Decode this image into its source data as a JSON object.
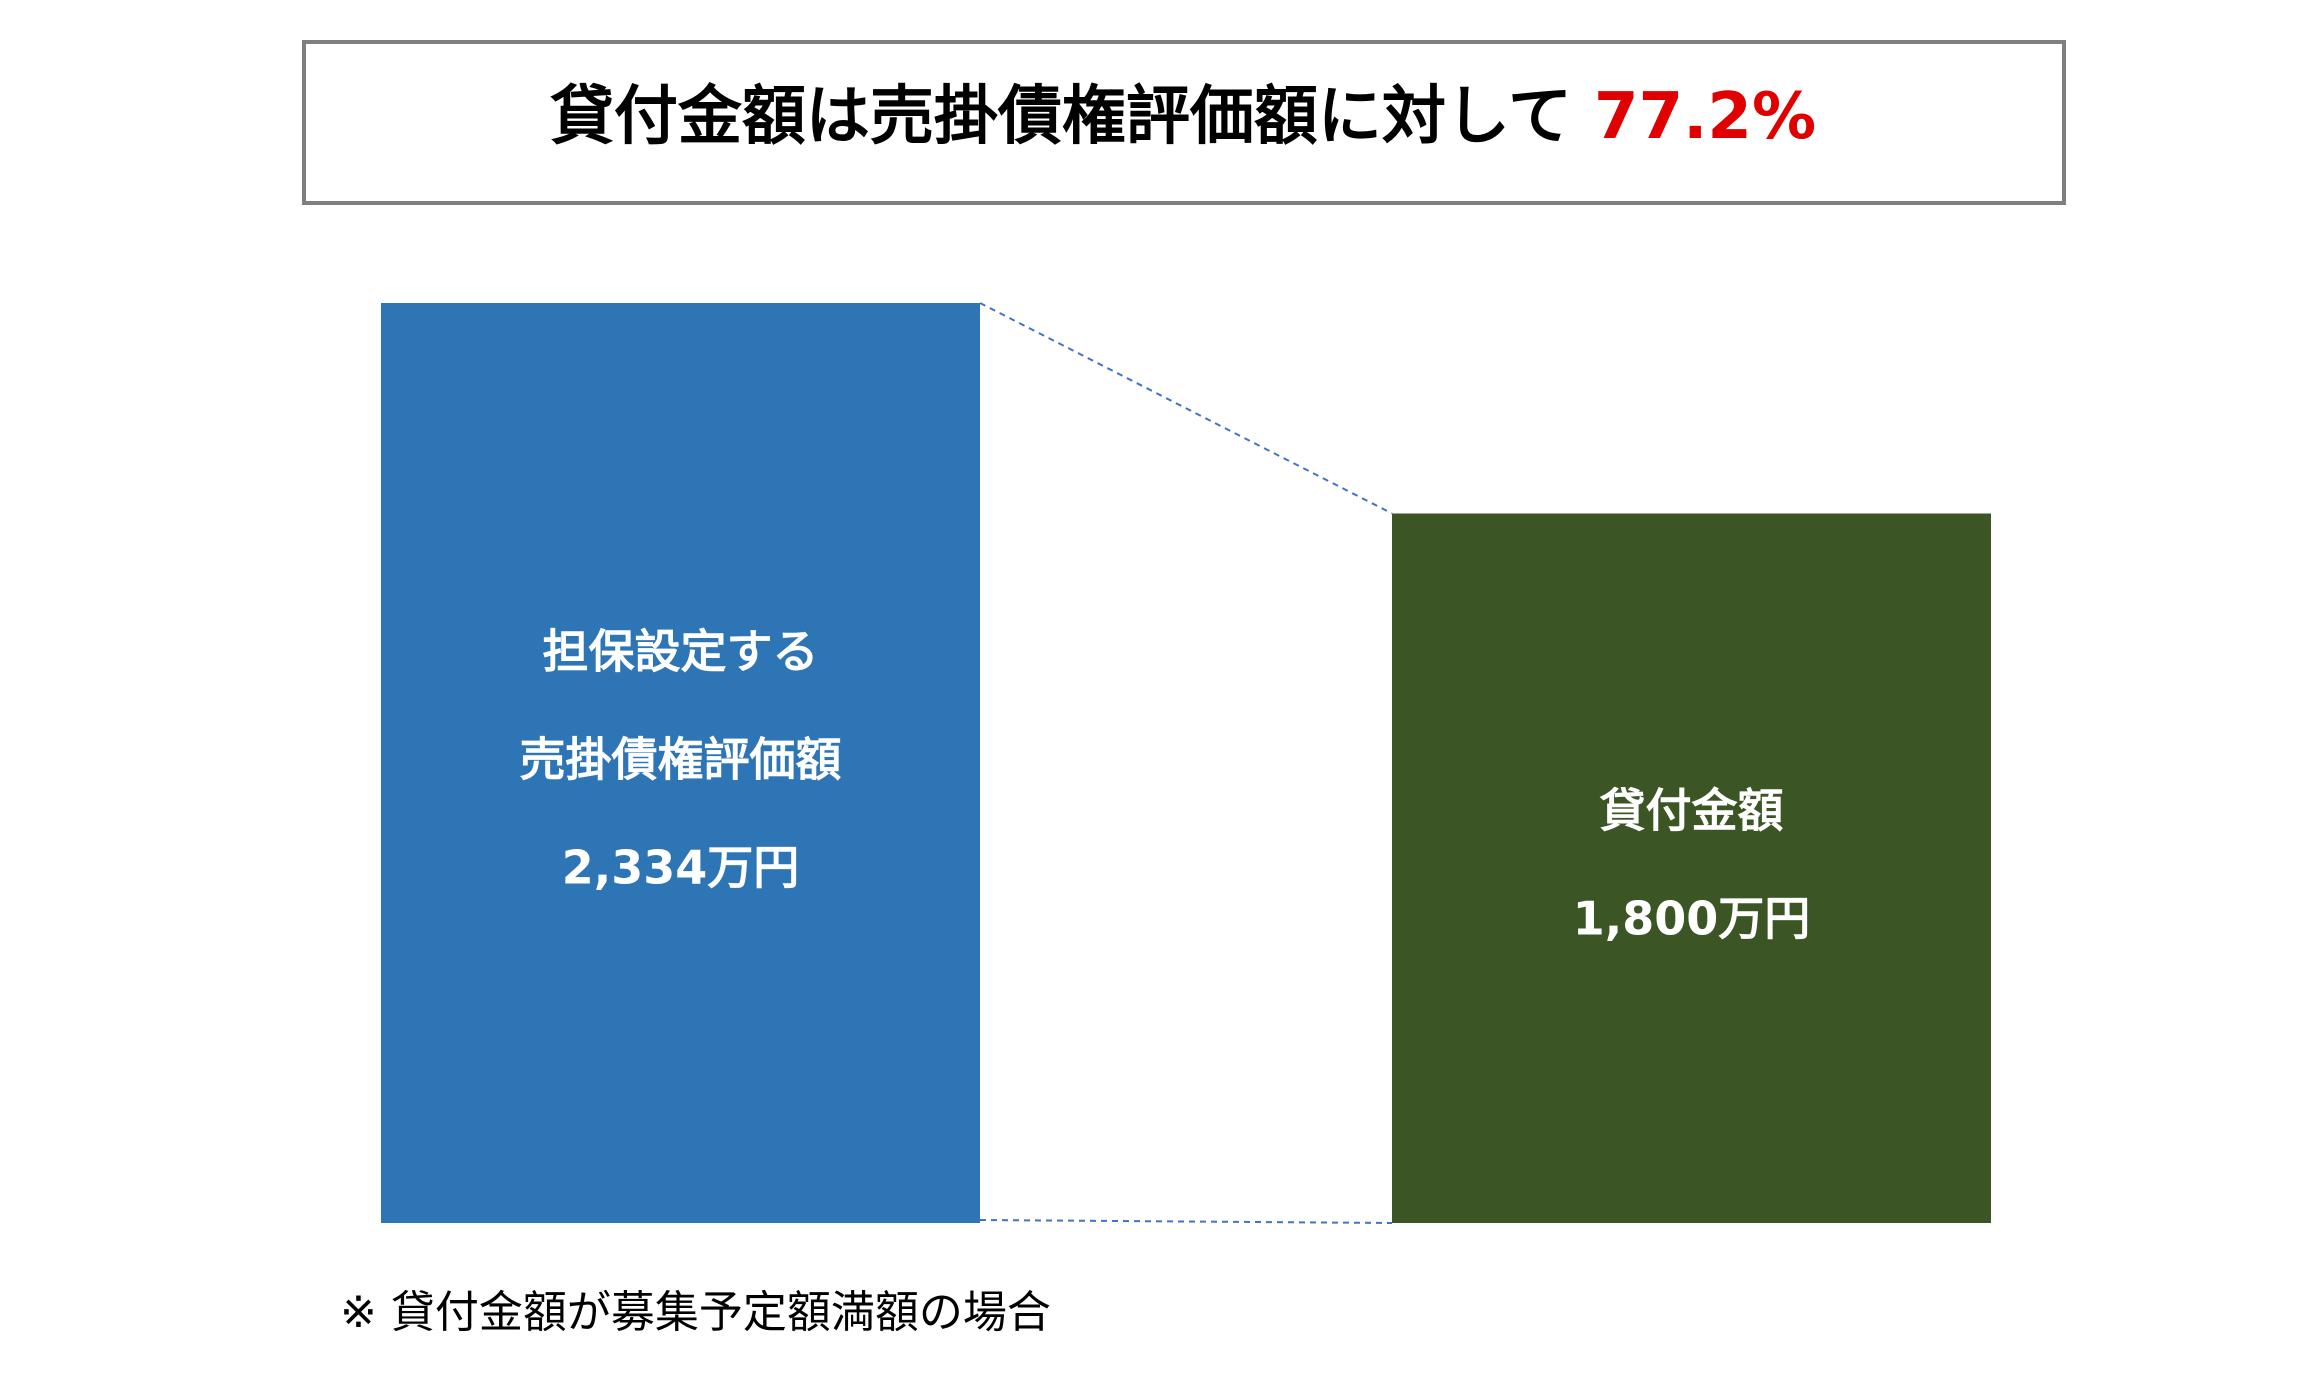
{
  "chart_data": {
    "type": "bar",
    "title": "貸付金額は売掛債権評価額に対して",
    "title_highlight": "77.2%",
    "categories": [
      [
        "担保設定する",
        "売掛債権評価額"
      ],
      [
        "貸付金額"
      ]
    ],
    "values": [
      2334,
      1800
    ],
    "value_labels": [
      "2,334万円",
      "1,800万円"
    ],
    "colors": [
      "#2e75b6",
      "#3b5524"
    ],
    "note": "※ 貸付金額が募集予定額満額の場合"
  }
}
